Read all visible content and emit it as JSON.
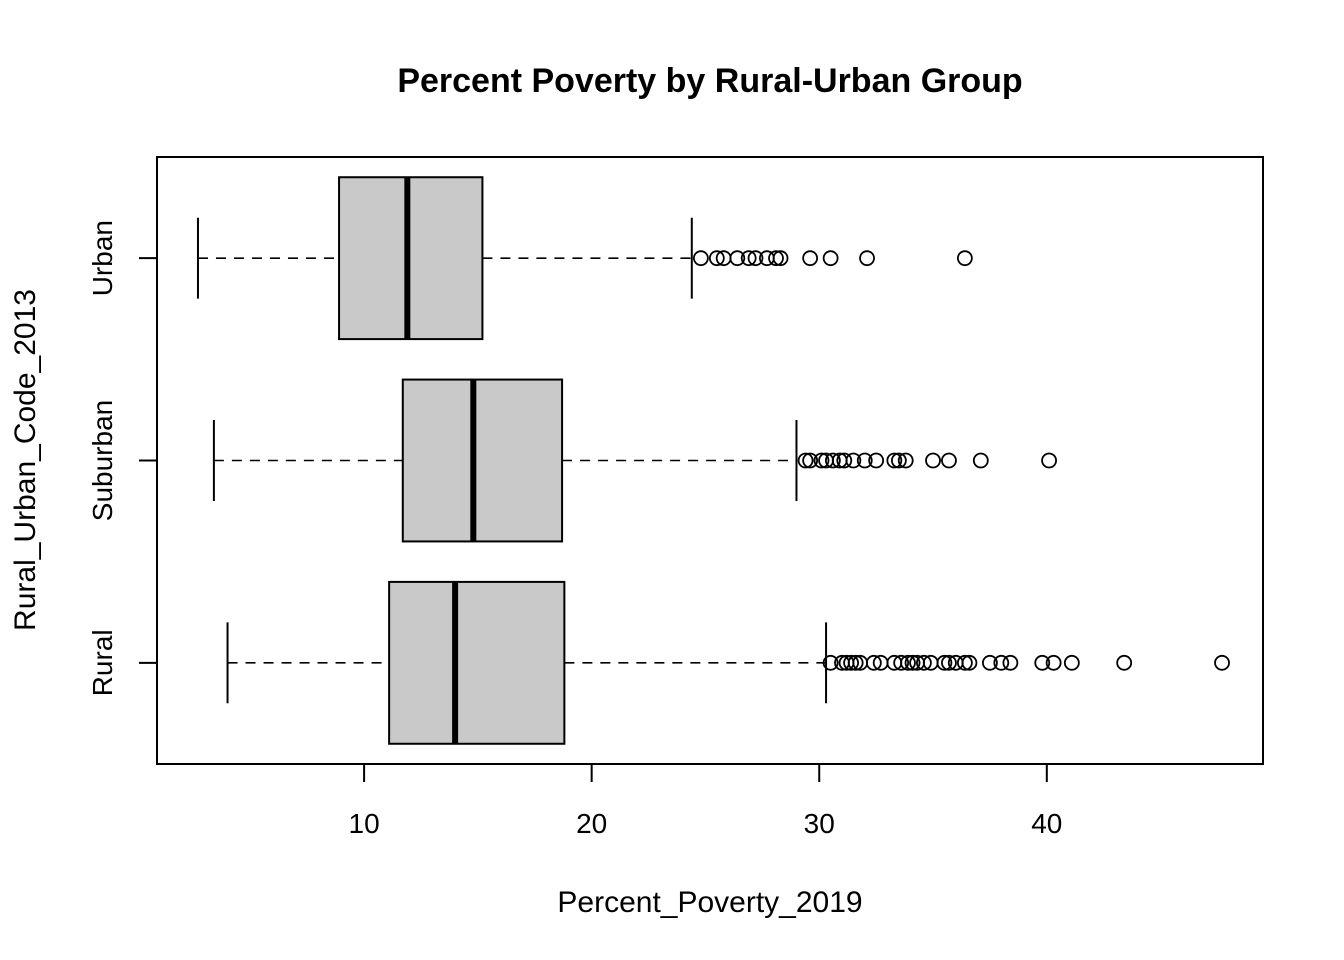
{
  "chart_data": {
    "type": "boxplot",
    "orientation": "horizontal",
    "title": "Percent Poverty by Rural-Urban Group",
    "xlabel": "Percent_Poverty_2019",
    "ylabel": "Rural_Urban_Code_2013",
    "xlim": [
      0.9,
      49.5
    ],
    "xticks": [
      10,
      20,
      30,
      40
    ],
    "xtick_labels": [
      "10",
      "20",
      "30",
      "40"
    ],
    "grid": false,
    "box_fill": "#c9c9c9",
    "categories": [
      "Rural",
      "Suburban",
      "Urban"
    ],
    "boxes": [
      {
        "category": "Rural",
        "whisker_low": 4.0,
        "q1": 11.1,
        "median": 14.0,
        "q3": 18.8,
        "whisker_high": 30.3,
        "outliers": [
          30.5,
          31.0,
          31.2,
          31.4,
          31.6,
          31.8,
          32.4,
          32.7,
          33.3,
          33.6,
          33.9,
          34.1,
          34.3,
          34.6,
          34.9,
          35.5,
          35.7,
          36.0,
          36.4,
          36.6,
          37.5,
          38.0,
          38.4,
          39.8,
          40.3,
          41.1,
          43.4,
          47.7
        ]
      },
      {
        "category": "Suburban",
        "whisker_low": 3.4,
        "q1": 11.7,
        "median": 14.8,
        "q3": 18.7,
        "whisker_high": 29.0,
        "outliers": [
          29.4,
          29.6,
          30.1,
          30.3,
          30.6,
          30.9,
          31.1,
          31.5,
          32.0,
          32.5,
          33.3,
          33.5,
          33.8,
          35.0,
          35.7,
          37.1,
          40.1
        ]
      },
      {
        "category": "Urban",
        "whisker_low": 2.7,
        "q1": 8.9,
        "median": 11.9,
        "q3": 15.2,
        "whisker_high": 24.4,
        "outliers": [
          24.8,
          25.5,
          25.8,
          26.4,
          26.9,
          27.2,
          27.7,
          28.1,
          28.3,
          29.6,
          30.5,
          32.1,
          36.4
        ]
      }
    ]
  }
}
